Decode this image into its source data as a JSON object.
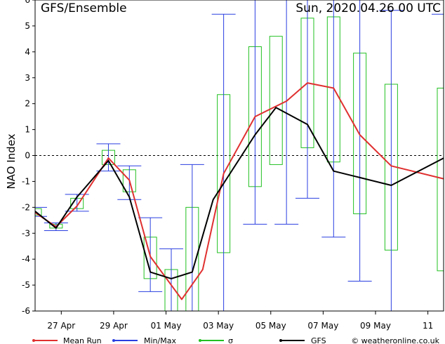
{
  "chart_data": {
    "type": "line",
    "title": "GFS/Ensemble",
    "date_label": "Sun, 2020.04.26   00 UTC",
    "ylabel": "NAO Index",
    "ylim": [
      -6,
      6
    ],
    "y_ticks": [
      -6,
      -5,
      -4,
      -3,
      -2,
      -1,
      0,
      1,
      2,
      3,
      4,
      5,
      6
    ],
    "x_tick_labels": [
      "27 Apr",
      "29 Apr",
      "01 May",
      "03 May",
      "05 May",
      "07 May",
      "09 May",
      "11"
    ],
    "x_tick_positions": [
      1,
      3,
      5,
      7,
      9,
      11,
      13,
      15
    ],
    "xlim": [
      0,
      15.6
    ],
    "zero_line": true,
    "colors": {
      "mean_run": "#e03030",
      "min_max": "#2a3fe0",
      "sigma": "#22c022",
      "gfs": "#000000"
    },
    "legend": [
      {
        "name": "Mean Run",
        "color": "#e03030"
      },
      {
        "name": "Min/Max",
        "color": "#2a3fe0"
      },
      {
        "name": "σ",
        "color": "#22c022"
      },
      {
        "name": "GFS",
        "color": "#000000"
      }
    ],
    "credit": "© weatheronline.co.uk",
    "mean_run": [
      [
        0,
        -2.2
      ],
      [
        0.8,
        -2.75
      ],
      [
        1.6,
        -1.95
      ],
      [
        2.8,
        -0.1
      ],
      [
        3.6,
        -0.95
      ],
      [
        4.4,
        -3.9
      ],
      [
        5.6,
        -5.55
      ],
      [
        6.4,
        -4.4
      ],
      [
        7.2,
        -0.7
      ],
      [
        8.4,
        1.5
      ],
      [
        9.6,
        2.1
      ],
      [
        10.4,
        2.8
      ],
      [
        11.4,
        2.6
      ],
      [
        12.4,
        0.8
      ],
      [
        13.6,
        -0.4
      ],
      [
        15.6,
        -0.9
      ]
    ],
    "gfs": [
      [
        0,
        -2.15
      ],
      [
        0.8,
        -2.8
      ],
      [
        1.6,
        -1.6
      ],
      [
        2.8,
        -0.2
      ],
      [
        3.6,
        -1.6
      ],
      [
        4.4,
        -4.5
      ],
      [
        5.2,
        -4.75
      ],
      [
        6.0,
        -4.5
      ],
      [
        6.8,
        -1.7
      ],
      [
        8.4,
        0.8
      ],
      [
        9.2,
        1.85
      ],
      [
        10.4,
        1.2
      ],
      [
        11.4,
        -0.6
      ],
      [
        12.4,
        -0.85
      ],
      [
        13.6,
        -1.15
      ],
      [
        15.6,
        -0.1
      ]
    ],
    "min_max": [
      {
        "x": 0.0,
        "min": -2.35,
        "max": -2.0
      },
      {
        "x": 0.8,
        "min": -2.9,
        "max": -2.6
      },
      {
        "x": 1.6,
        "min": -2.15,
        "max": -1.5
      },
      {
        "x": 2.8,
        "min": -0.6,
        "max": 0.45
      },
      {
        "x": 3.6,
        "min": -1.7,
        "max": -0.4
      },
      {
        "x": 4.4,
        "min": -5.25,
        "max": -2.4
      },
      {
        "x": 5.2,
        "min": -6.0,
        "max": -3.6
      },
      {
        "x": 6.0,
        "min": -6.0,
        "max": -0.35
      },
      {
        "x": 7.2,
        "min": -6.0,
        "max": 5.45
      },
      {
        "x": 8.4,
        "min": -2.65,
        "max": 6.0
      },
      {
        "x": 9.6,
        "min": -2.65,
        "max": 6.0
      },
      {
        "x": 10.4,
        "min": -1.65,
        "max": 6.0
      },
      {
        "x": 11.4,
        "min": -3.15,
        "max": 6.0
      },
      {
        "x": 12.4,
        "min": -4.85,
        "max": 6.0
      },
      {
        "x": 13.6,
        "min": -6.0,
        "max": 5.6
      },
      {
        "x": 15.6,
        "min": -6.0,
        "max": 5.45
      }
    ],
    "sigma": [
      {
        "x": 0.0,
        "low": -2.3,
        "high": -2.05
      },
      {
        "x": 0.8,
        "low": -2.8,
        "high": -2.65
      },
      {
        "x": 1.6,
        "low": -2.05,
        "high": -1.65
      },
      {
        "x": 2.8,
        "low": -0.35,
        "high": 0.2
      },
      {
        "x": 3.6,
        "low": -1.4,
        "high": -0.55
      },
      {
        "x": 4.4,
        "low": -4.75,
        "high": -3.15
      },
      {
        "x": 5.2,
        "low": -6.0,
        "high": -4.4
      },
      {
        "x": 6.0,
        "low": -6.0,
        "high": -2.0
      },
      {
        "x": 7.2,
        "low": -3.75,
        "high": 2.35
      },
      {
        "x": 8.4,
        "low": -1.2,
        "high": 4.2
      },
      {
        "x": 9.2,
        "low": -0.35,
        "high": 4.6
      },
      {
        "x": 10.4,
        "low": 0.3,
        "high": 5.3
      },
      {
        "x": 11.4,
        "low": -0.25,
        "high": 5.35
      },
      {
        "x": 12.4,
        "low": -2.25,
        "high": 3.95
      },
      {
        "x": 13.6,
        "low": -3.65,
        "high": 2.75
      },
      {
        "x": 15.6,
        "low": -4.45,
        "high": 2.6
      }
    ]
  }
}
